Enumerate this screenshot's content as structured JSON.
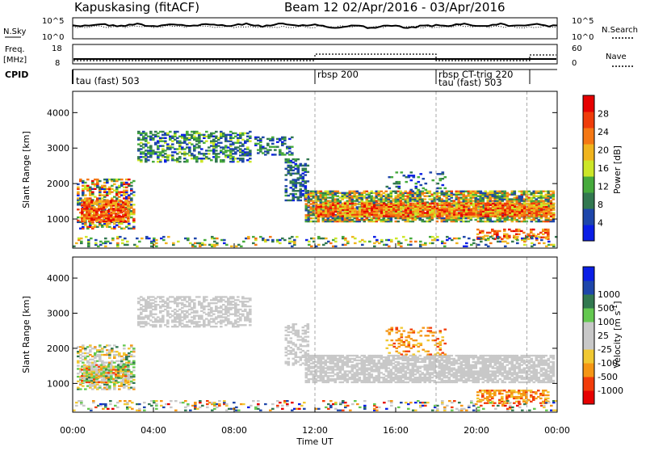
{
  "header": {
    "title_left": "Kapuskasing (fitACF)",
    "title_right": "Beam 12  02/Apr/2016 - 03/Apr/2016"
  },
  "noise_panel": {
    "left_label": "N.Sky",
    "left_ticks": [
      "10^5",
      "10^0"
    ],
    "right_ticks": [
      "10^5",
      "10^0"
    ],
    "right_label": "N.Search"
  },
  "freq_panel": {
    "left_label_1": "Freq.",
    "left_label_2": "[MHz]",
    "left_ticks": [
      "18",
      "8"
    ],
    "right_ticks": [
      "60",
      "0"
    ],
    "right_label": "Nave"
  },
  "cpid": {
    "label": "CPID",
    "modes": [
      {
        "name": "tau (fast) 503",
        "start_h": 0.1
      },
      {
        "name": "rbsp 200",
        "start_h": 12.0
      },
      {
        "name": "rbsp CT-trig 220",
        "start_h": 18.0
      },
      {
        "name": "tau (fast) 503",
        "start_h": 18.0
      }
    ]
  },
  "colors": {
    "power": [
      "#0a1ee6",
      "#1e46aa",
      "#327850",
      "#46aa3c",
      "#cce628",
      "#f0b41e",
      "#f57814",
      "#ef3c0a",
      "#e60000"
    ],
    "velocity": [
      "#e60000",
      "#f23c0a",
      "#f59614",
      "#f0c832",
      "#c8c8c8",
      "#c8c8c8",
      "#64c850",
      "#327850",
      "#1e46aa",
      "#0a1ee6"
    ]
  },
  "chart_data": [
    {
      "type": "heatmap",
      "name": "Power",
      "ylabel": "Slant Range [km]",
      "ylim": [
        180,
        4600
      ],
      "yticks": [
        1000,
        2000,
        3000,
        4000
      ],
      "colorbar_label": "Power [dB]",
      "colorbar_ticks": [
        "4",
        "8",
        "12",
        "16",
        "20",
        "24",
        "28"
      ],
      "colorbar_range": [
        0,
        32
      ],
      "patches": [
        {
          "t0": 0.2,
          "t1": 3.0,
          "r0": 700,
          "r1": 2100,
          "density": 0.5,
          "vmin": 2,
          "vmax": 31
        },
        {
          "t0": 0.4,
          "t1": 2.8,
          "r0": 900,
          "r1": 1500,
          "density": 0.8,
          "vmin": 18,
          "vmax": 31
        },
        {
          "t0": 3.2,
          "t1": 8.8,
          "r0": 2600,
          "r1": 3500,
          "density": 0.5,
          "vmin": 2,
          "vmax": 16
        },
        {
          "t0": 9.0,
          "t1": 10.8,
          "r0": 2800,
          "r1": 3300,
          "density": 0.4,
          "vmin": 2,
          "vmax": 14
        },
        {
          "t0": 10.5,
          "t1": 11.6,
          "r0": 1500,
          "r1": 2700,
          "density": 0.45,
          "vmin": 2,
          "vmax": 12
        },
        {
          "t0": 11.5,
          "t1": 23.8,
          "r0": 900,
          "r1": 1800,
          "density": 0.75,
          "vmin": 4,
          "vmax": 26
        },
        {
          "t0": 12.0,
          "t1": 23.8,
          "r0": 1050,
          "r1": 1450,
          "density": 0.85,
          "vmin": 16,
          "vmax": 30
        },
        {
          "t0": 15.5,
          "t1": 18.5,
          "r0": 1800,
          "r1": 2300,
          "density": 0.2,
          "vmin": 2,
          "vmax": 14
        },
        {
          "t0": 20.0,
          "t1": 23.5,
          "r0": 400,
          "r1": 700,
          "density": 0.45,
          "vmin": 18,
          "vmax": 31
        },
        {
          "t0": 0.0,
          "t1": 24.0,
          "r0": 190,
          "r1": 500,
          "density": 0.2,
          "vmin": 2,
          "vmax": 24
        }
      ]
    },
    {
      "type": "heatmap",
      "name": "Velocity",
      "ylabel": "Slant Range [km]",
      "ylim": [
        180,
        4600
      ],
      "yticks": [
        1000,
        2000,
        3000,
        4000
      ],
      "colorbar_label": "Velocity [m s^-1]",
      "colorbar_ticks": [
        "-1000",
        "-500",
        "-100",
        "-25",
        "25",
        "100",
        "500",
        "1000"
      ],
      "patches": [
        {
          "t0": 0.2,
          "t1": 3.0,
          "r0": 800,
          "r1": 2100,
          "density": 0.5,
          "vmin": 2,
          "vmax": 7
        },
        {
          "t0": 0.4,
          "t1": 2.8,
          "r0": 1000,
          "r1": 1500,
          "density": 0.8,
          "vmin": 1,
          "vmax": 7
        },
        {
          "t0": 3.2,
          "t1": 8.8,
          "r0": 2600,
          "r1": 3500,
          "density": 0.5,
          "vmin": 4,
          "vmax": 5
        },
        {
          "t0": 10.5,
          "t1": 11.6,
          "r0": 1500,
          "r1": 2700,
          "density": 0.45,
          "vmin": 4,
          "vmax": 5
        },
        {
          "t0": 11.5,
          "t1": 23.8,
          "r0": 1000,
          "r1": 1800,
          "density": 0.75,
          "vmin": 4,
          "vmax": 5
        },
        {
          "t0": 15.5,
          "t1": 18.5,
          "r0": 1800,
          "r1": 2600,
          "density": 0.25,
          "vmin": 1,
          "vmax": 3
        },
        {
          "t0": 20.0,
          "t1": 23.5,
          "r0": 400,
          "r1": 800,
          "density": 0.5,
          "vmin": 1,
          "vmax": 3
        },
        {
          "t0": 0.0,
          "t1": 24.0,
          "r0": 190,
          "r1": 500,
          "density": 0.2,
          "vmin": 0,
          "vmax": 9
        }
      ]
    }
  ],
  "xaxis": {
    "ticks": [
      "00:00",
      "04:00",
      "08:00",
      "12:00",
      "16:00",
      "20:00",
      "00:00"
    ],
    "label": "Time UT",
    "range_h": [
      0,
      24
    ]
  },
  "dashed_marks_h": [
    12.0,
    18.0,
    22.5
  ]
}
